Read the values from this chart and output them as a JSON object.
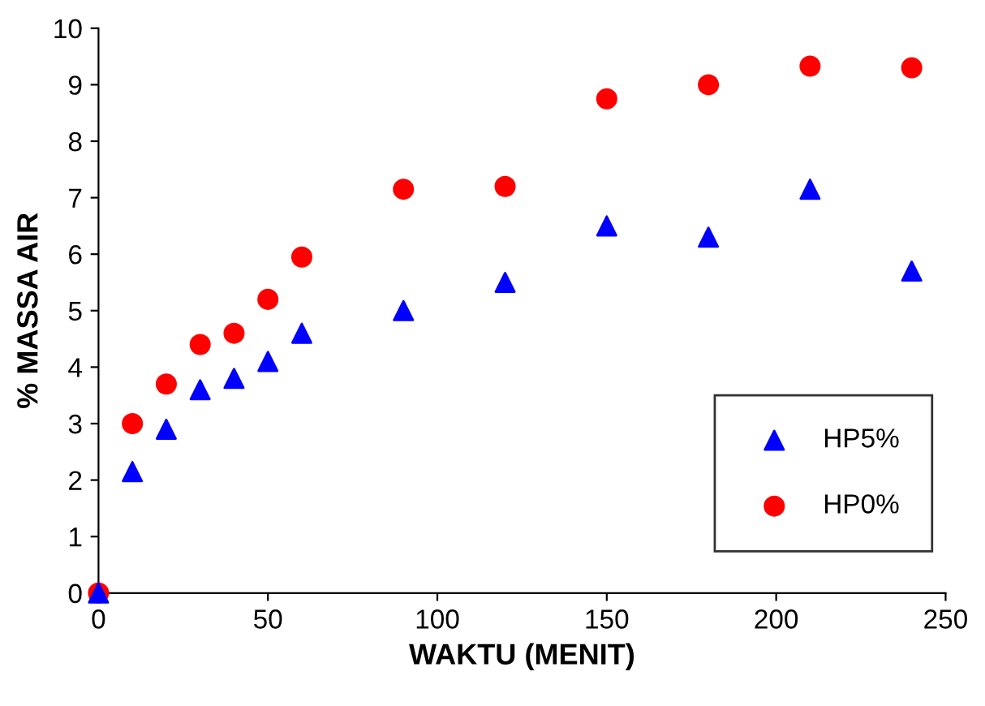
{
  "chart_data": {
    "type": "scatter",
    "xlabel": "WAKTU (MENIT)",
    "ylabel": "% MASSA AIR",
    "xlim": [
      0,
      250
    ],
    "xticks": [
      0,
      50,
      100,
      150,
      200,
      250
    ],
    "ylim": [
      0,
      10
    ],
    "yticks": [
      0,
      1,
      2,
      3,
      4,
      5,
      6,
      7,
      8,
      9,
      10
    ],
    "grid": false,
    "legend": "bottom right",
    "series": [
      {
        "name": "HP5%",
        "color": "#0000ff",
        "marker": "triangle",
        "x": [
          0,
          10,
          20,
          30,
          40,
          50,
          60,
          90,
          120,
          150,
          180,
          210,
          240
        ],
        "values": [
          0,
          2.15,
          2.9,
          3.6,
          3.8,
          4.1,
          4.6,
          5.0,
          5.5,
          6.5,
          6.3,
          7.15,
          5.7
        ]
      },
      {
        "name": "HP0%",
        "color": "#ff0000",
        "marker": "circle",
        "x": [
          0,
          10,
          20,
          30,
          40,
          50,
          60,
          90,
          120,
          150,
          180,
          210,
          240
        ],
        "values": [
          0,
          3.0,
          3.7,
          4.4,
          4.6,
          5.2,
          5.95,
          7.15,
          7.2,
          8.75,
          9.0,
          9.33,
          9.3
        ]
      }
    ]
  }
}
